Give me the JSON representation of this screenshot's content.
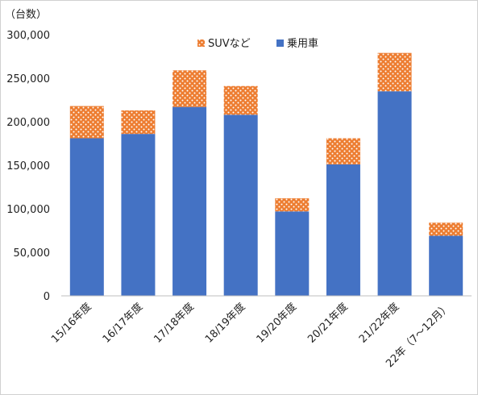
{
  "chart_data": {
    "type": "bar",
    "stacked": true,
    "title": "",
    "ylabel": "（台数）",
    "xlabel": "",
    "categories": [
      "15/16年度",
      "16/17年度",
      "17/18年度",
      "18/19年度",
      "19/20年度",
      "20/21年度",
      "21/22年度",
      "22年（7～12月）"
    ],
    "series": [
      {
        "name": "乗用車",
        "color": "#4472C4",
        "values": [
          181000,
          186000,
          217000,
          208000,
          97000,
          151000,
          235000,
          69000
        ]
      },
      {
        "name": "SUVなど",
        "color": "#ED7D31",
        "pattern": "dotted",
        "values": [
          37000,
          27000,
          42000,
          33000,
          15000,
          30000,
          44000,
          15000
        ]
      }
    ],
    "ylim": [
      0,
      300000
    ],
    "yticks": [
      0,
      50000,
      100000,
      150000,
      200000,
      250000,
      300000
    ],
    "ytick_labels": [
      "0",
      "50,000",
      "100,000",
      "150,000",
      "200,000",
      "250,000",
      "300,000"
    ],
    "grid": false,
    "legend_position": "top-center",
    "legend_order": [
      "SUVなど",
      "乗用車"
    ]
  }
}
